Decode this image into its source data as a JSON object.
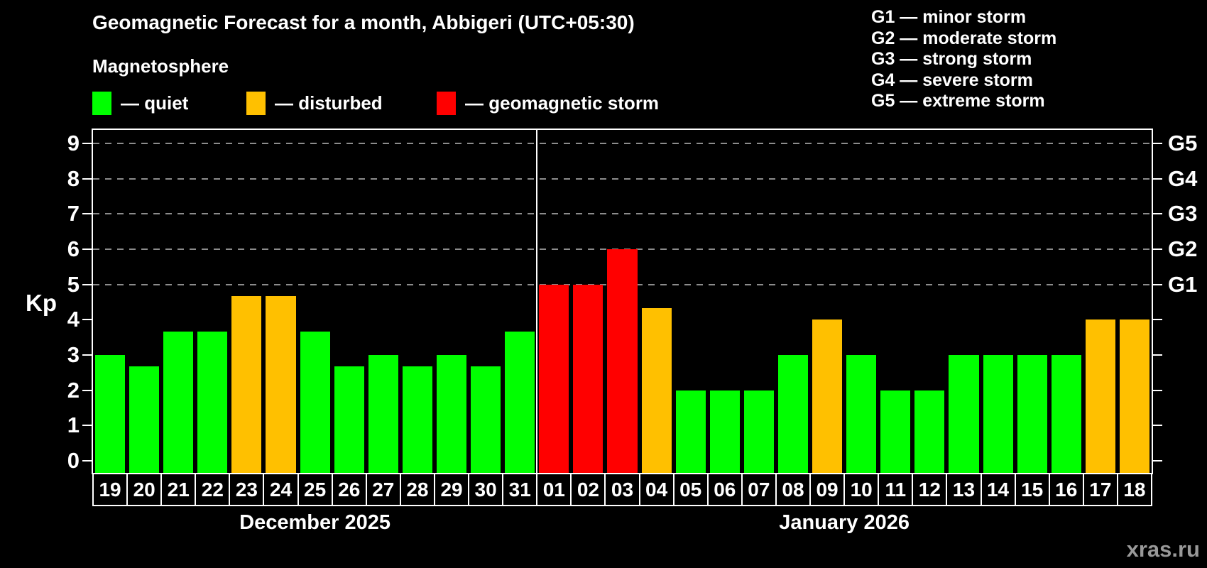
{
  "title": "Geomagnetic Forecast for a month, Abbigeri (UTC+05:30)",
  "magnetosphere_label": "Magnetosphere",
  "legend": {
    "items": [
      {
        "name": "quiet",
        "label": "— quiet",
        "color_key": "quiet"
      },
      {
        "name": "disturbed",
        "label": "— disturbed",
        "color_key": "disturbed"
      },
      {
        "name": "storm",
        "label": "— geomagnetic storm",
        "color_key": "storm"
      }
    ]
  },
  "g_scale_legend": [
    "G1 — minor storm",
    "G2 — moderate storm",
    "G3 — strong storm",
    "G4 — severe storm",
    "G5 — extreme storm"
  ],
  "colors": {
    "quiet": "#00ff00",
    "disturbed": "#ffc000",
    "storm": "#ff0000",
    "grid": "#8c8c8c",
    "axis": "#ffffff",
    "watermark": "#999999"
  },
  "watermark": "xras.ru",
  "chart_data": {
    "type": "bar",
    "title": "Geomagnetic Forecast for a month, Abbigeri (UTC+05:30)",
    "ylabel": "Kp",
    "ylim": [
      0,
      9
    ],
    "y_ticks": [
      0,
      1,
      2,
      3,
      4,
      5,
      6,
      7,
      8,
      9
    ],
    "gridlines_at": [
      5,
      6,
      7,
      8,
      9
    ],
    "grid": "dashed, only at G-storm levels",
    "right_axis_labels": [
      {
        "label": "G1",
        "kp": 5
      },
      {
        "label": "G2",
        "kp": 6
      },
      {
        "label": "G3",
        "kp": 7
      },
      {
        "label": "G4",
        "kp": 8
      },
      {
        "label": "G5",
        "kp": 9
      }
    ],
    "sections": [
      {
        "label": "December 2025",
        "bars": [
          {
            "day": "19",
            "kp": 3.0,
            "level": "quiet"
          },
          {
            "day": "20",
            "kp": 2.67,
            "level": "quiet"
          },
          {
            "day": "21",
            "kp": 3.67,
            "level": "quiet"
          },
          {
            "day": "22",
            "kp": 3.67,
            "level": "quiet"
          },
          {
            "day": "23",
            "kp": 4.67,
            "level": "disturbed"
          },
          {
            "day": "24",
            "kp": 4.67,
            "level": "disturbed"
          },
          {
            "day": "25",
            "kp": 3.67,
            "level": "quiet"
          },
          {
            "day": "26",
            "kp": 2.67,
            "level": "quiet"
          },
          {
            "day": "27",
            "kp": 3.0,
            "level": "quiet"
          },
          {
            "day": "28",
            "kp": 2.67,
            "level": "quiet"
          },
          {
            "day": "29",
            "kp": 3.0,
            "level": "quiet"
          },
          {
            "day": "30",
            "kp": 2.67,
            "level": "quiet"
          },
          {
            "day": "31",
            "kp": 3.67,
            "level": "quiet"
          }
        ]
      },
      {
        "label": "January 2026",
        "bars": [
          {
            "day": "01",
            "kp": 5.0,
            "level": "storm"
          },
          {
            "day": "02",
            "kp": 5.0,
            "level": "storm"
          },
          {
            "day": "03",
            "kp": 6.0,
            "level": "storm"
          },
          {
            "day": "04",
            "kp": 4.33,
            "level": "disturbed"
          },
          {
            "day": "05",
            "kp": 2.0,
            "level": "quiet"
          },
          {
            "day": "06",
            "kp": 2.0,
            "level": "quiet"
          },
          {
            "day": "07",
            "kp": 2.0,
            "level": "quiet"
          },
          {
            "day": "08",
            "kp": 3.0,
            "level": "quiet"
          },
          {
            "day": "09",
            "kp": 4.0,
            "level": "disturbed"
          },
          {
            "day": "10",
            "kp": 3.0,
            "level": "quiet"
          },
          {
            "day": "11",
            "kp": 2.0,
            "level": "quiet"
          },
          {
            "day": "12",
            "kp": 2.0,
            "level": "quiet"
          },
          {
            "day": "13",
            "kp": 3.0,
            "level": "quiet"
          },
          {
            "day": "14",
            "kp": 3.0,
            "level": "quiet"
          },
          {
            "day": "15",
            "kp": 3.0,
            "level": "quiet"
          },
          {
            "day": "16",
            "kp": 3.0,
            "level": "quiet"
          },
          {
            "day": "17",
            "kp": 4.0,
            "level": "disturbed"
          },
          {
            "day": "18",
            "kp": 4.0,
            "level": "disturbed"
          }
        ]
      }
    ]
  }
}
